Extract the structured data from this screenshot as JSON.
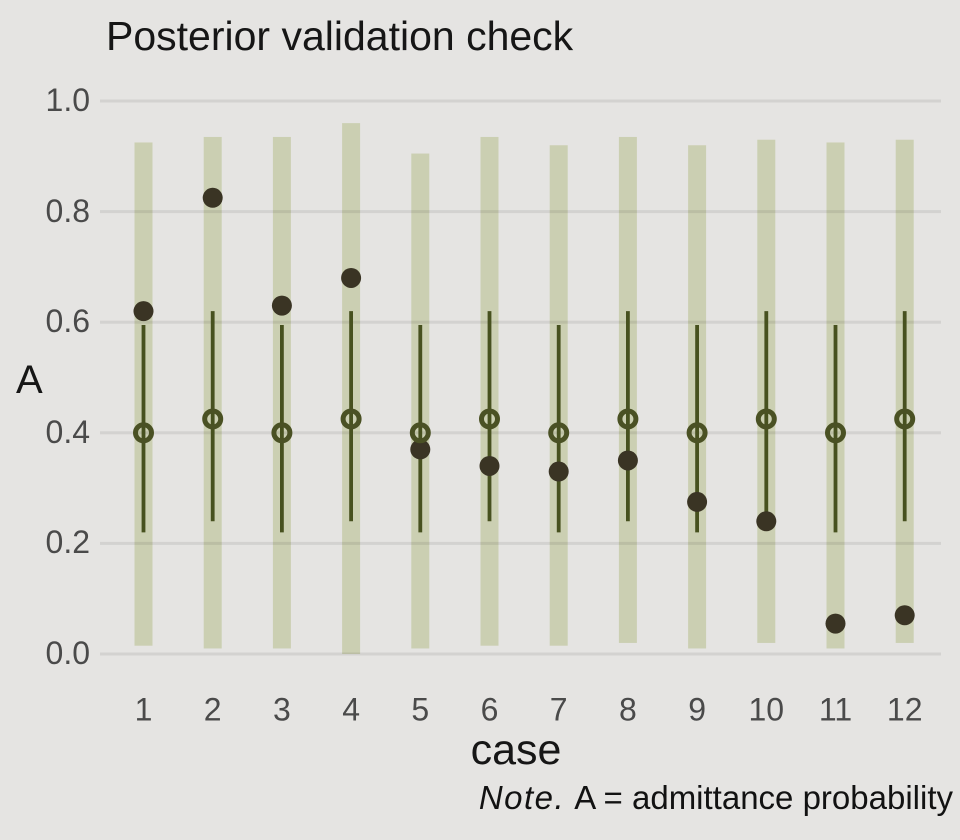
{
  "title": "Posterior validation check",
  "note": {
    "label": "Note.",
    "text": "A = admittance probability"
  },
  "chart_data": {
    "type": "interval-dot",
    "title": "Posterior validation check",
    "xlabel": "case",
    "ylabel": "A",
    "ylim": [
      0,
      1
    ],
    "y_ticks": [
      "0.0",
      "0.2",
      "0.4",
      "0.6",
      "0.8",
      "1.0"
    ],
    "categories": [
      "1",
      "2",
      "3",
      "4",
      "5",
      "6",
      "7",
      "8",
      "9",
      "10",
      "11",
      "12"
    ],
    "grid": true,
    "legend": "none",
    "series": [
      {
        "name": "outer interval (wide band)",
        "type": "bar-range",
        "lo": [
          0.015,
          0.01,
          0.01,
          0.0,
          0.01,
          0.015,
          0.015,
          0.02,
          0.01,
          0.02,
          0.01,
          0.02
        ],
        "hi": [
          0.925,
          0.935,
          0.935,
          0.96,
          0.905,
          0.935,
          0.92,
          0.935,
          0.92,
          0.93,
          0.925,
          0.93
        ]
      },
      {
        "name": "inner interval (thin line)",
        "type": "line-range",
        "lo": [
          0.22,
          0.24,
          0.22,
          0.24,
          0.22,
          0.24,
          0.22,
          0.24,
          0.22,
          0.24,
          0.22,
          0.24
        ],
        "hi": [
          0.595,
          0.62,
          0.595,
          0.62,
          0.595,
          0.62,
          0.595,
          0.62,
          0.595,
          0.62,
          0.595,
          0.62
        ]
      },
      {
        "name": "posterior median (open circle)",
        "type": "point-open",
        "values": [
          0.4,
          0.425,
          0.4,
          0.425,
          0.4,
          0.425,
          0.4,
          0.425,
          0.4,
          0.425,
          0.4,
          0.425
        ]
      },
      {
        "name": "observed (filled dot)",
        "type": "point-filled",
        "values": [
          0.62,
          0.825,
          0.63,
          0.68,
          0.37,
          0.34,
          0.33,
          0.35,
          0.275,
          0.24,
          0.055,
          0.07
        ]
      }
    ],
    "colors": {
      "background": "#e5e4e2",
      "gridline": "#d2d2d2",
      "outer_band": "#cbcfb2",
      "inner_line": "#47511f",
      "median_ring": "#4a5124",
      "observed_dot": "#3a3424",
      "text_dark": "#161616",
      "text_gray": "#4a4a4a"
    }
  }
}
